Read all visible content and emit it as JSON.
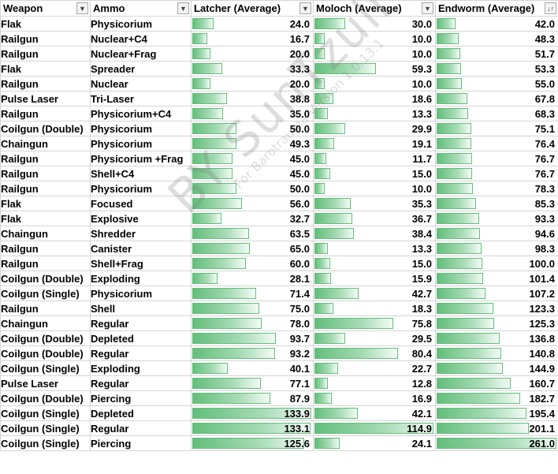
{
  "headers": [
    {
      "label": "Weapon",
      "control": "filter-dropdown"
    },
    {
      "label": "Ammo",
      "control": "filter-dropdown"
    },
    {
      "label": "Latcher (Average)",
      "control": "filter-dropdown"
    },
    {
      "label": "Moloch (Average)",
      "control": "filter-dropdown"
    },
    {
      "label": "Endworm (Average)",
      "control": "sort-ascending"
    }
  ],
  "bar_max": {
    "latcher": 133.9,
    "moloch": 114.9,
    "endworm": 261.0
  },
  "bar_color": "#63be7b",
  "rows": [
    {
      "weapon": "Flak",
      "ammo": "Physicorium",
      "latcher": "24.0",
      "moloch": "30.0",
      "endworm": "42.0"
    },
    {
      "weapon": "Railgun",
      "ammo": "Nuclear+C4",
      "latcher": "16.7",
      "moloch": "10.0",
      "endworm": "48.3"
    },
    {
      "weapon": "Railgun",
      "ammo": "Nuclear+Frag",
      "latcher": "20.0",
      "moloch": "10.0",
      "endworm": "51.7"
    },
    {
      "weapon": "Flak",
      "ammo": "Spreader",
      "latcher": "33.3",
      "moloch": "59.3",
      "endworm": "53.3"
    },
    {
      "weapon": "Railgun",
      "ammo": "Nuclear",
      "latcher": "20.0",
      "moloch": "10.0",
      "endworm": "55.0"
    },
    {
      "weapon": "Pulse Laser",
      "ammo": "Tri-Laser",
      "latcher": "38.8",
      "moloch": "18.6",
      "endworm": "67.8"
    },
    {
      "weapon": "Railgun",
      "ammo": "Physicorium+C4",
      "latcher": "35.0",
      "moloch": "13.3",
      "endworm": "68.3"
    },
    {
      "weapon": "Coilgun (Double)",
      "ammo": "Physicorium",
      "latcher": "50.0",
      "moloch": "29.9",
      "endworm": "75.1"
    },
    {
      "weapon": "Chaingun",
      "ammo": "Physicorium",
      "latcher": "49.3",
      "moloch": "19.1",
      "endworm": "76.4"
    },
    {
      "weapon": "Railgun",
      "ammo": "Physicorium +Frag",
      "latcher": "45.0",
      "moloch": "11.7",
      "endworm": "76.7"
    },
    {
      "weapon": "Railgun",
      "ammo": "Shell+C4",
      "latcher": "45.0",
      "moloch": "15.0",
      "endworm": "76.7"
    },
    {
      "weapon": "Railgun",
      "ammo": "Physicorium",
      "latcher": "50.0",
      "moloch": "10.0",
      "endworm": "78.3"
    },
    {
      "weapon": "Flak",
      "ammo": "Focused",
      "latcher": "56.0",
      "moloch": "35.3",
      "endworm": "85.3"
    },
    {
      "weapon": "Flak",
      "ammo": "Explosive",
      "latcher": "32.7",
      "moloch": "36.7",
      "endworm": "93.3"
    },
    {
      "weapon": "Chaingun",
      "ammo": "Shredder",
      "latcher": "63.5",
      "moloch": "38.4",
      "endworm": "94.6"
    },
    {
      "weapon": "Railgun",
      "ammo": "Canister",
      "latcher": "65.0",
      "moloch": "13.3",
      "endworm": "98.3"
    },
    {
      "weapon": "Railgun",
      "ammo": "Shell+Frag",
      "latcher": "60.0",
      "moloch": "15.0",
      "endworm": "100.0"
    },
    {
      "weapon": "Coilgun (Double)",
      "ammo": "Exploding",
      "latcher": "28.1",
      "moloch": "15.9",
      "endworm": "101.4"
    },
    {
      "weapon": "Coilgun (Single)",
      "ammo": "Physicorium",
      "latcher": "71.4",
      "moloch": "42.7",
      "endworm": "107.2"
    },
    {
      "weapon": "Railgun",
      "ammo": "Shell",
      "latcher": "75.0",
      "moloch": "18.3",
      "endworm": "123.3"
    },
    {
      "weapon": "Chaingun",
      "ammo": "Regular",
      "latcher": "78.0",
      "moloch": "75.8",
      "endworm": "125.3"
    },
    {
      "weapon": "Coilgun (Double)",
      "ammo": "Depleted",
      "latcher": "93.7",
      "moloch": "29.5",
      "endworm": "136.8"
    },
    {
      "weapon": "Coilgun (Double)",
      "ammo": "Regular",
      "latcher": "93.2",
      "moloch": "80.4",
      "endworm": "140.8"
    },
    {
      "weapon": "Coilgun (Single)",
      "ammo": "Exploding",
      "latcher": "40.1",
      "moloch": "22.7",
      "endworm": "144.9"
    },
    {
      "weapon": "Pulse Laser",
      "ammo": "Regular",
      "latcher": "77.1",
      "moloch": "12.8",
      "endworm": "160.7"
    },
    {
      "weapon": "Coilgun (Double)",
      "ammo": "Piercing",
      "latcher": "87.9",
      "moloch": "16.9",
      "endworm": "182.7"
    },
    {
      "weapon": "Coilgun (Single)",
      "ammo": "Depleted",
      "latcher": "133.9",
      "moloch": "42.1",
      "endworm": "195.4"
    },
    {
      "weapon": "Coilgun (Single)",
      "ammo": "Regular",
      "latcher": "133.1",
      "moloch": "114.9",
      "endworm": "201.1"
    },
    {
      "weapon": "Coilgun (Single)",
      "ammo": "Piercing",
      "latcher": "125.6",
      "moloch": "24.1",
      "endworm": "261.0"
    }
  ],
  "watermark": {
    "main": "BY SunTzull",
    "sub": "For Barotrauma Version 1.0.13.1"
  }
}
